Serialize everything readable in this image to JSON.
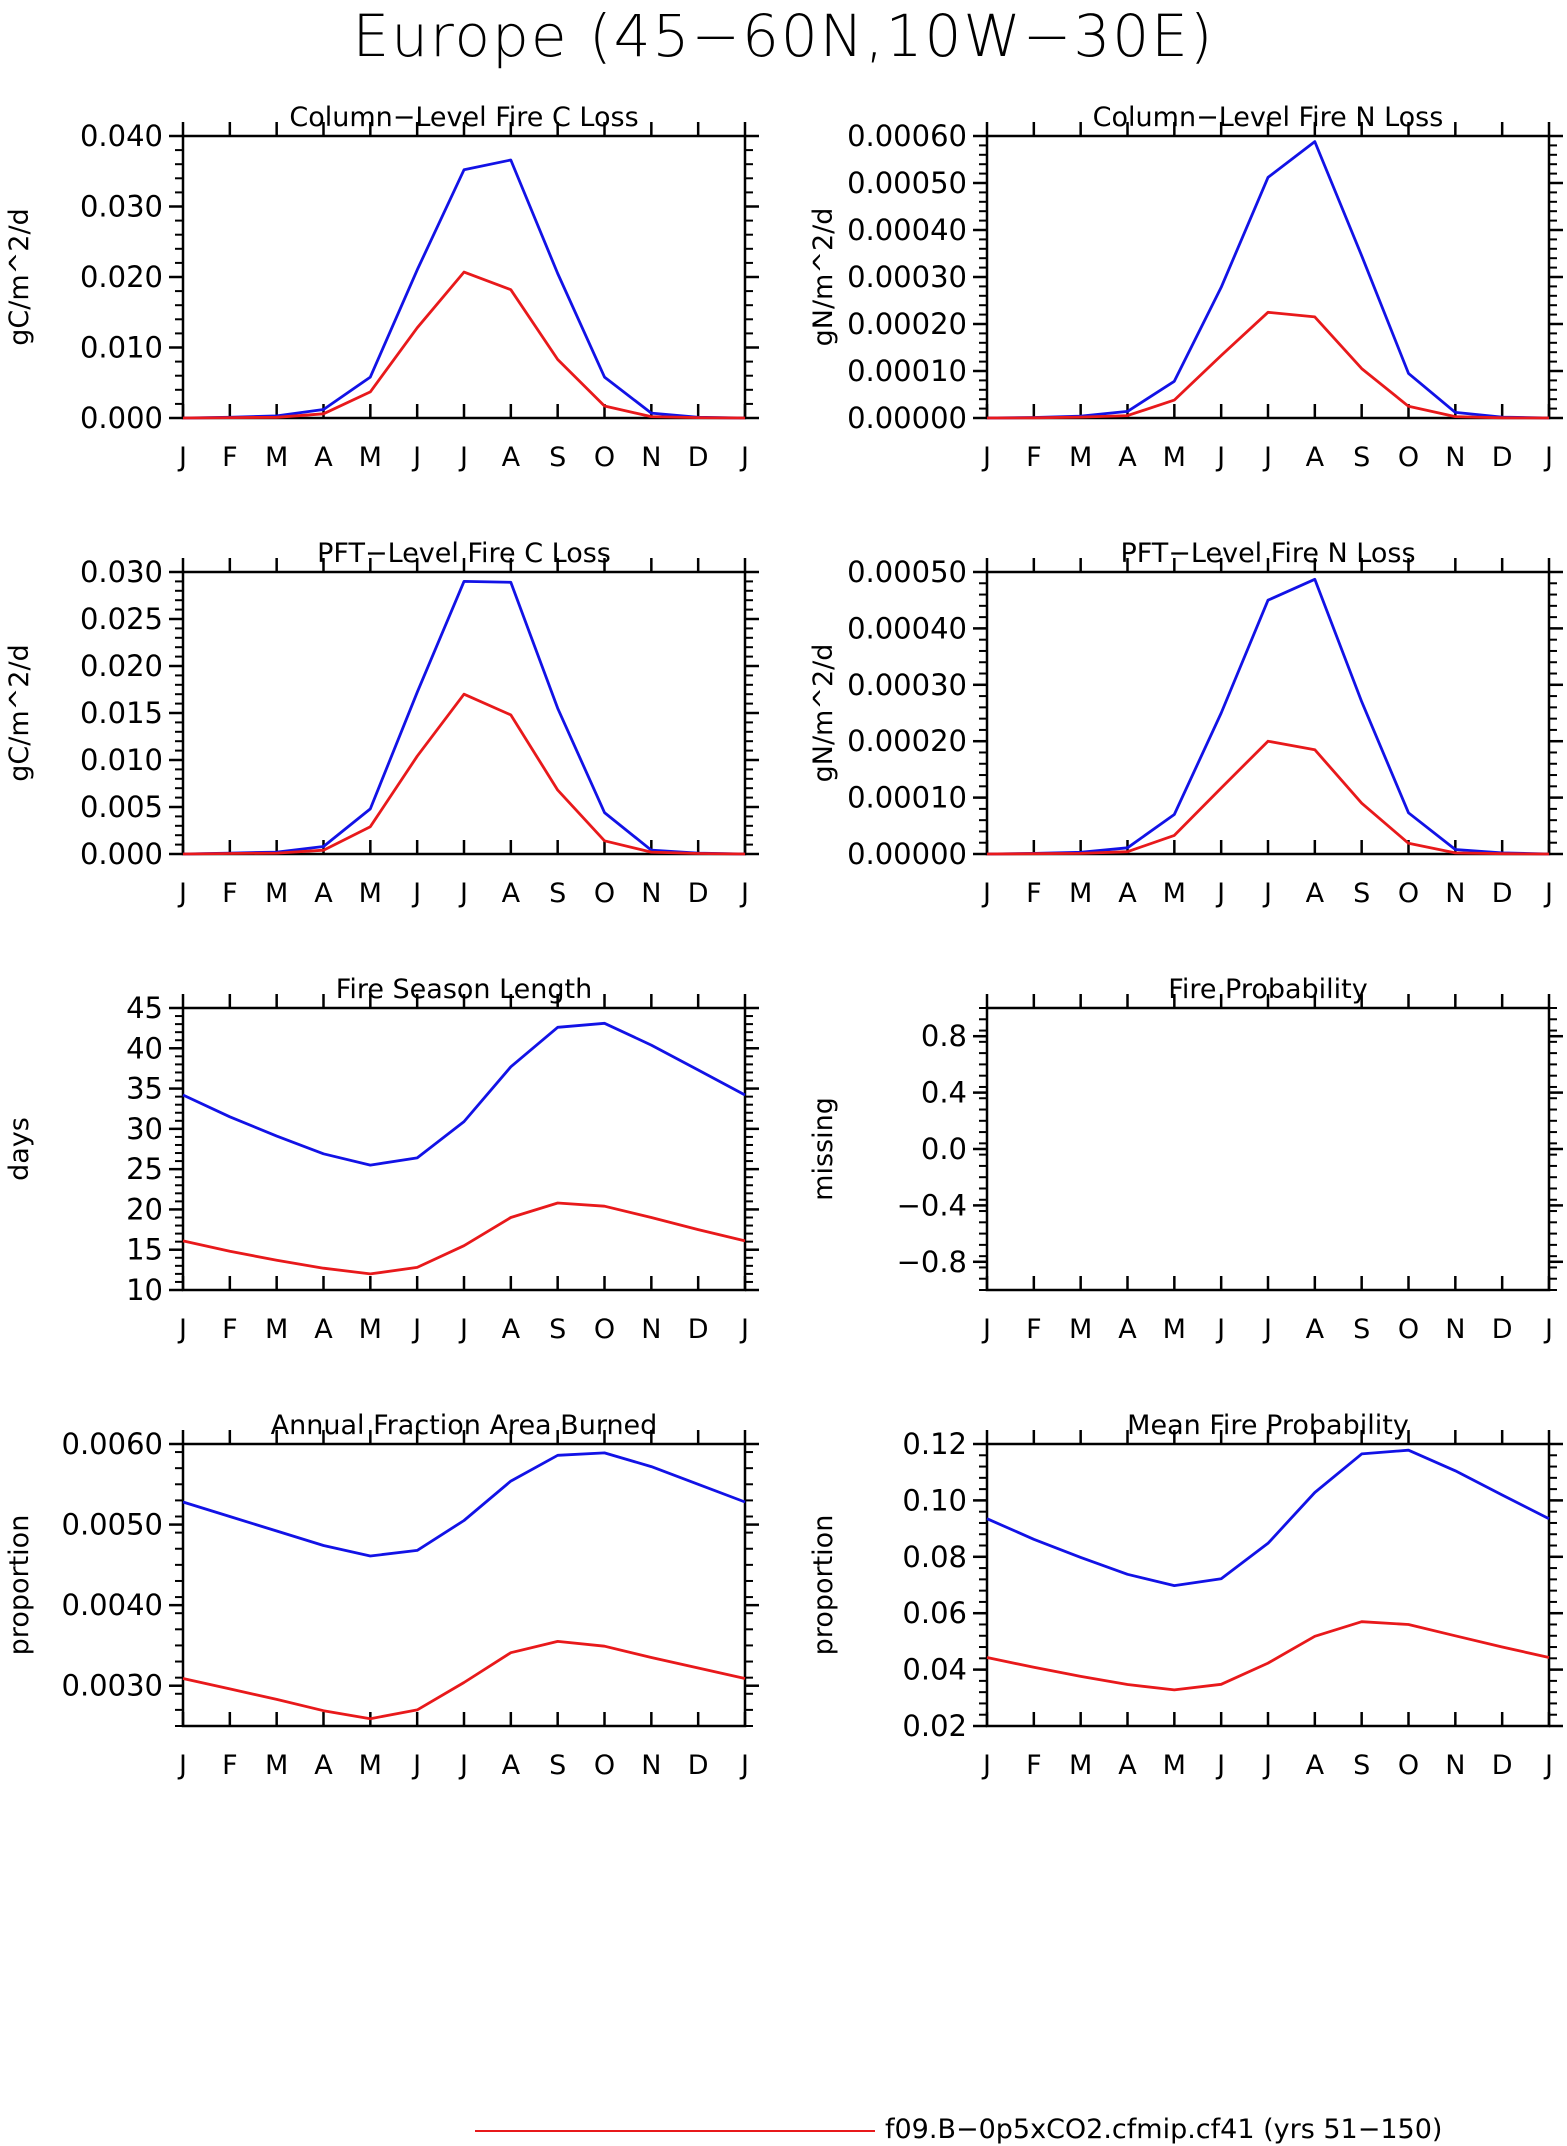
{
  "figure": {
    "title": "Europe (45−60N,10W−30E)",
    "legend_label": "f09.B−0p5xCO2.cfmip.cf41 (yrs 51−150)",
    "colors": {
      "series_a": "#1212e6",
      "series_b": "#e8191b",
      "axes": "#000000"
    }
  },
  "chart_data": [
    {
      "type": "line",
      "title": "Column−Level Fire C Loss",
      "ylabel": "gC/m^2/d",
      "categories": [
        "J",
        "F",
        "M",
        "A",
        "M",
        "J",
        "J",
        "A",
        "S",
        "O",
        "N",
        "D",
        "J"
      ],
      "ylim": [
        0,
        0.04
      ],
      "yticks": [
        "0.000",
        "0.010",
        "0.020",
        "0.030",
        "0.040"
      ],
      "ytick_values": [
        0,
        0.01,
        0.02,
        0.03,
        0.04
      ],
      "series": [
        {
          "color": "#1212e6",
          "values": [
            0,
            0.0001,
            0.0003,
            0.0012,
            0.0058,
            0.021,
            0.0352,
            0.0366,
            0.0205,
            0.0058,
            0.0007,
            0.0001,
            0
          ]
        },
        {
          "color": "#e8191b",
          "values": [
            0,
            5e-05,
            0.0001,
            0.0006,
            0.0037,
            0.0128,
            0.0207,
            0.0182,
            0.0083,
            0.0017,
            0.0002,
            5e-05,
            0
          ]
        }
      ]
    },
    {
      "type": "line",
      "title": "Column−Level Fire N Loss",
      "ylabel": "gN/m^2/d",
      "categories": [
        "J",
        "F",
        "M",
        "A",
        "M",
        "J",
        "J",
        "A",
        "S",
        "O",
        "N",
        "D",
        "J"
      ],
      "ylim": [
        0,
        0.0006
      ],
      "yticks": [
        "0.00000",
        "0.00010",
        "0.00020",
        "0.00030",
        "0.00040",
        "0.00050",
        "0.00060"
      ],
      "ytick_values": [
        0,
        0.0001,
        0.0002,
        0.0003,
        0.0004,
        0.0005,
        0.0006
      ],
      "series": [
        {
          "color": "#1212e6",
          "values": [
            0,
            1e-06,
            4e-06,
            1.4e-05,
            7.8e-05,
            0.000278,
            0.000512,
            0.000588,
            0.000345,
            9.5e-05,
            1.2e-05,
            2e-06,
            0
          ]
        },
        {
          "color": "#e8191b",
          "values": [
            0,
            5e-07,
            2e-06,
            5e-06,
            3.8e-05,
            0.000133,
            0.000225,
            0.000215,
            0.000105,
            2.5e-05,
            3e-06,
            5e-07,
            0
          ]
        }
      ]
    },
    {
      "type": "line",
      "title": "PFT−Level Fire C Loss",
      "ylabel": "gC/m^2/d",
      "categories": [
        "J",
        "F",
        "M",
        "A",
        "M",
        "J",
        "J",
        "A",
        "S",
        "O",
        "N",
        "D",
        "J"
      ],
      "ylim": [
        0,
        0.03
      ],
      "yticks": [
        "0.000",
        "0.005",
        "0.010",
        "0.015",
        "0.020",
        "0.025",
        "0.030"
      ],
      "ytick_values": [
        0,
        0.005,
        0.01,
        0.015,
        0.02,
        0.025,
        0.03
      ],
      "series": [
        {
          "color": "#1212e6",
          "values": [
            0,
            0.0001,
            0.0002,
            0.0008,
            0.0048,
            0.0172,
            0.029,
            0.0289,
            0.0155,
            0.0044,
            0.0004,
            0.0001,
            0
          ]
        },
        {
          "color": "#e8191b",
          "values": [
            0,
            5e-05,
            0.0001,
            0.0004,
            0.0029,
            0.0104,
            0.017,
            0.0148,
            0.0068,
            0.0014,
            0.0002,
            5e-05,
            0
          ]
        }
      ]
    },
    {
      "type": "line",
      "title": "PFT−Level Fire N Loss",
      "ylabel": "gN/m^2/d",
      "categories": [
        "J",
        "F",
        "M",
        "A",
        "M",
        "J",
        "J",
        "A",
        "S",
        "O",
        "N",
        "D",
        "J"
      ],
      "ylim": [
        0,
        0.0005
      ],
      "yticks": [
        "0.00000",
        "0.00010",
        "0.00020",
        "0.00030",
        "0.00040",
        "0.00050"
      ],
      "ytick_values": [
        0,
        0.0001,
        0.0002,
        0.0003,
        0.0004,
        0.0005
      ],
      "series": [
        {
          "color": "#1212e6",
          "values": [
            0,
            1e-06,
            3e-06,
            1.1e-05,
            7e-05,
            0.00025,
            0.00045,
            0.000487,
            0.00027,
            7.3e-05,
            8e-06,
            2e-06,
            0
          ]
        },
        {
          "color": "#e8191b",
          "values": [
            0,
            5e-07,
            1e-06,
            4e-06,
            3.3e-05,
            0.000117,
            0.0002,
            0.000185,
            9e-05,
            1.9e-05,
            2e-06,
            5e-07,
            0
          ]
        }
      ]
    },
    {
      "type": "line",
      "title": "Fire Season Length",
      "ylabel": "days",
      "categories": [
        "J",
        "F",
        "M",
        "A",
        "M",
        "J",
        "J",
        "A",
        "S",
        "O",
        "N",
        "D",
        "J"
      ],
      "ylim": [
        10,
        45
      ],
      "yticks": [
        "10",
        "15",
        "20",
        "25",
        "30",
        "35",
        "40",
        "45"
      ],
      "ytick_values": [
        10,
        15,
        20,
        25,
        30,
        35,
        40,
        45
      ],
      "series": [
        {
          "color": "#1212e6",
          "values": [
            34.2,
            31.5,
            29.1,
            26.9,
            25.5,
            26.4,
            30.9,
            37.7,
            42.6,
            43.1,
            40.4,
            37.3,
            34.2
          ]
        },
        {
          "color": "#e8191b",
          "values": [
            16.1,
            14.8,
            13.7,
            12.7,
            12.0,
            12.8,
            15.5,
            19.0,
            20.8,
            20.4,
            19.0,
            17.5,
            16.1
          ]
        }
      ]
    },
    {
      "type": "line",
      "title": "Fire Probability",
      "ylabel": "missing",
      "categories": [
        "J",
        "F",
        "M",
        "A",
        "M",
        "J",
        "J",
        "A",
        "S",
        "O",
        "N",
        "D",
        "J"
      ],
      "ylim": [
        -1,
        1
      ],
      "yticks": [
        "−0.8",
        "−0.4",
        "0.0",
        "0.4",
        "0.8"
      ],
      "ytick_values": [
        -0.8,
        -0.4,
        0,
        0.4,
        0.8
      ],
      "series": []
    },
    {
      "type": "line",
      "title": "Annual Fraction Area Burned",
      "ylabel": "proportion",
      "categories": [
        "J",
        "F",
        "M",
        "A",
        "M",
        "J",
        "J",
        "A",
        "S",
        "O",
        "N",
        "D",
        "J"
      ],
      "ylim": [
        0.0025,
        0.006
      ],
      "yticks": [
        "0.0030",
        "0.0040",
        "0.0050",
        "0.0060"
      ],
      "ytick_values": [
        0.003,
        0.004,
        0.005,
        0.006
      ],
      "series": [
        {
          "color": "#1212e6",
          "values": [
            0.00528,
            0.0051,
            0.00492,
            0.00474,
            0.00461,
            0.00468,
            0.00505,
            0.00554,
            0.00586,
            0.00589,
            0.00572,
            0.0055,
            0.00528
          ]
        },
        {
          "color": "#e8191b",
          "values": [
            0.00309,
            0.00296,
            0.00283,
            0.00269,
            0.00259,
            0.0027,
            0.00304,
            0.00341,
            0.00355,
            0.00349,
            0.00335,
            0.00322,
            0.00309
          ]
        }
      ]
    },
    {
      "type": "line",
      "title": "Mean Fire Probability",
      "ylabel": "proportion",
      "categories": [
        "J",
        "F",
        "M",
        "A",
        "M",
        "J",
        "J",
        "A",
        "S",
        "O",
        "N",
        "D",
        "J"
      ],
      "ylim": [
        0.02,
        0.12
      ],
      "yticks": [
        "0.02",
        "0.04",
        "0.06",
        "0.08",
        "0.10",
        "0.12"
      ],
      "ytick_values": [
        0.02,
        0.04,
        0.06,
        0.08,
        0.1,
        0.12
      ],
      "series": [
        {
          "color": "#1212e6",
          "values": [
            0.0935,
            0.0862,
            0.0798,
            0.0738,
            0.0698,
            0.0722,
            0.0848,
            0.1028,
            0.1165,
            0.1178,
            0.1105,
            0.1019,
            0.0935
          ]
        },
        {
          "color": "#e8191b",
          "values": [
            0.0443,
            0.0408,
            0.0376,
            0.0347,
            0.0328,
            0.0348,
            0.0423,
            0.0518,
            0.057,
            0.056,
            0.052,
            0.048,
            0.0443
          ]
        }
      ]
    }
  ]
}
